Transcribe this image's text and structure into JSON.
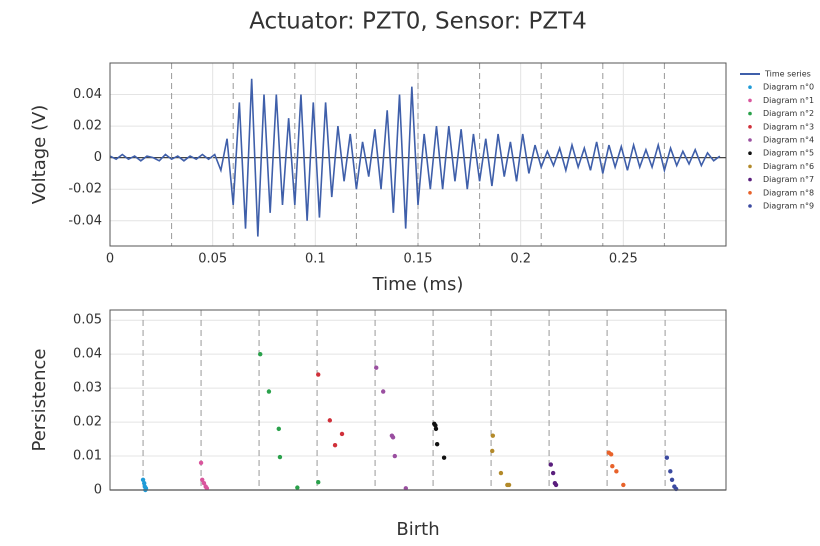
{
  "chart_data": [
    {
      "type": "line",
      "title": "Actuator: PZT0, Sensor: PZT4",
      "xlabel": "Time (ms)",
      "ylabel": "Voltage (V)",
      "x": [
        0,
        0.003,
        0.006,
        0.009,
        0.012,
        0.015,
        0.018,
        0.021,
        0.024,
        0.027,
        0.03,
        0.033,
        0.036,
        0.039,
        0.042,
        0.045,
        0.048,
        0.051,
        0.054,
        0.057,
        0.06,
        0.063,
        0.066,
        0.069,
        0.072,
        0.075,
        0.078,
        0.081,
        0.084,
        0.087,
        0.09,
        0.093,
        0.096,
        0.099,
        0.102,
        0.105,
        0.108,
        0.111,
        0.114,
        0.117,
        0.12,
        0.123,
        0.126,
        0.129,
        0.132,
        0.135,
        0.138,
        0.141,
        0.144,
        0.147,
        0.15,
        0.153,
        0.156,
        0.159,
        0.162,
        0.165,
        0.168,
        0.171,
        0.174,
        0.177,
        0.18,
        0.183,
        0.186,
        0.189,
        0.192,
        0.195,
        0.198,
        0.201,
        0.204,
        0.207,
        0.21,
        0.213,
        0.216,
        0.219,
        0.222,
        0.225,
        0.228,
        0.231,
        0.234,
        0.237,
        0.24,
        0.243,
        0.246,
        0.249,
        0.252,
        0.255,
        0.258,
        0.261,
        0.264,
        0.267,
        0.27,
        0.273,
        0.276,
        0.279,
        0.282,
        0.285,
        0.288,
        0.291,
        0.294,
        0.297
      ],
      "series": [
        {
          "name": "Time series",
          "color": "#3f5faa",
          "values": [
            0.001,
            -0.001,
            0.002,
            -0.001,
            0.001,
            -0.002,
            0.001,
            0,
            -0.002,
            0.002,
            -0.001,
            0.001,
            -0.002,
            0.001,
            -0.001,
            0.002,
            -0.001,
            0.002,
            -0.008,
            0.012,
            -0.03,
            0.035,
            -0.045,
            0.05,
            -0.05,
            0.04,
            -0.035,
            0.04,
            -0.03,
            0.025,
            -0.03,
            0.04,
            -0.04,
            0.035,
            -0.038,
            0.035,
            -0.025,
            0.02,
            -0.015,
            0.015,
            -0.02,
            0.01,
            -0.012,
            0.018,
            -0.02,
            0.03,
            -0.035,
            0.04,
            -0.045,
            0.045,
            -0.03,
            0.015,
            -0.02,
            0.02,
            -0.02,
            0.02,
            -0.015,
            0.018,
            -0.02,
            0.015,
            -0.015,
            0.012,
            -0.018,
            0.015,
            -0.012,
            0.01,
            -0.015,
            0.015,
            -0.01,
            0.008,
            -0.006,
            0.004,
            -0.005,
            0.006,
            -0.008,
            0.008,
            -0.006,
            0.006,
            -0.008,
            0.01,
            -0.01,
            0.008,
            -0.006,
            0.007,
            -0.008,
            0.008,
            -0.006,
            0.005,
            -0.006,
            0.008,
            -0.008,
            0.006,
            -0.005,
            0.004,
            -0.004,
            0.005,
            -0.005,
            0.003,
            -0.002,
            0.001
          ]
        }
      ],
      "xlim": [
        0,
        0.3
      ],
      "ylim": [
        -0.056,
        0.06
      ],
      "xticks": [
        0,
        0.05,
        0.1,
        0.15,
        0.2,
        0.25
      ],
      "yticks": [
        -0.04,
        -0.02,
        0,
        0.02,
        0.04
      ],
      "vlines": [
        0.03,
        0.06,
        0.09,
        0.12,
        0.15,
        0.18,
        0.21,
        0.24,
        0.27
      ],
      "grid": true
    },
    {
      "type": "scatter",
      "xlabel": "Birth",
      "ylabel": "Persistence",
      "xlim": [
        -0.57,
        10.05
      ],
      "ylim": [
        0,
        0.053
      ],
      "yticks": [
        0,
        0.01,
        0.02,
        0.03,
        0.04,
        0.05
      ],
      "vlines": [
        0,
        1,
        2,
        3,
        4,
        5,
        6,
        7,
        8,
        9
      ],
      "grid": true,
      "series": [
        {
          "name": "Diagram n°0",
          "color": "#1f9bd7",
          "x": [
            0,
            0.02,
            0.03,
            0.05,
            0.04
          ],
          "values": [
            0.003,
            0.002,
            0.001,
            0.0005,
            0
          ]
        },
        {
          "name": "Diagram n°1",
          "color": "#d9569d",
          "x": [
            1.0,
            1.02,
            1.05,
            1.08,
            1.1
          ],
          "values": [
            0.008,
            0.003,
            0.002,
            0.001,
            0.0005
          ]
        },
        {
          "name": "Diagram n°2",
          "color": "#2aa14b",
          "x": [
            2.02,
            2.17,
            2.34,
            2.36,
            2.66,
            3.02
          ],
          "values": [
            0.04,
            0.029,
            0.018,
            0.0097,
            0.0007,
            0.0023
          ]
        },
        {
          "name": "Diagram n°3",
          "color": "#d0303a",
          "x": [
            3.02,
            3.22,
            3.31,
            3.43
          ],
          "values": [
            0.034,
            0.0205,
            0.0132,
            0.0165
          ]
        },
        {
          "name": "Diagram n°4",
          "color": "#9a4fa0",
          "x": [
            4.02,
            4.14,
            4.29,
            4.31,
            4.34,
            4.53
          ],
          "values": [
            0.036,
            0.029,
            0.016,
            0.0155,
            0.01,
            0.0005
          ]
        },
        {
          "name": "Diagram n°5",
          "color": "#111111",
          "x": [
            5.02,
            5.04,
            5.05,
            5.07,
            5.19
          ],
          "values": [
            0.0195,
            0.019,
            0.018,
            0.0135,
            0.0095
          ]
        },
        {
          "name": "Diagram n°6",
          "color": "#b38a2a",
          "x": [
            6.03,
            6.02,
            6.17,
            6.28,
            6.31
          ],
          "values": [
            0.016,
            0.0115,
            0.005,
            0.0015,
            0.0015
          ]
        },
        {
          "name": "Diagram n°7",
          "color": "#5a1f7d",
          "x": [
            7.03,
            7.07,
            7.1,
            7.12
          ],
          "values": [
            0.0075,
            0.005,
            0.002,
            0.0015
          ]
        },
        {
          "name": "Diagram n°8",
          "color": "#e8622a",
          "x": [
            8.03,
            8.07,
            8.09,
            8.16,
            8.28
          ],
          "values": [
            0.011,
            0.0105,
            0.007,
            0.0055,
            0.0015
          ]
        },
        {
          "name": "Diagram n°9",
          "color": "#3b4aa0",
          "x": [
            9.03,
            9.09,
            9.12,
            9.16,
            9.19
          ],
          "values": [
            0.0095,
            0.0055,
            0.003,
            0.001,
            0.0003
          ]
        }
      ]
    }
  ]
}
